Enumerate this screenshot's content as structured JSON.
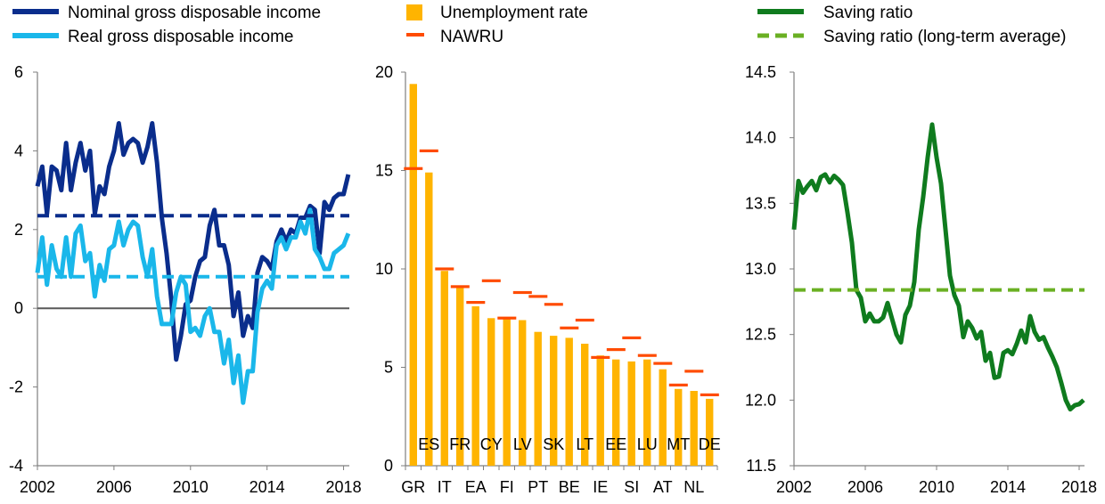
{
  "colors": {
    "nominal": "#0a2d8c",
    "real": "#1ab7ea",
    "unemployment": "#ffb400",
    "nawru": "#ff4b00",
    "saving": "#0f7b1e",
    "saving_avg": "#6ab023",
    "zero_line": "#595959",
    "axis": "#7f7f7f"
  },
  "chart_data": [
    {
      "type": "line",
      "legend": [
        {
          "name": "Nominal gross disposable income",
          "color": "#0a2d8c"
        },
        {
          "name": "Real gross disposable income",
          "color": "#1ab7ea"
        }
      ],
      "ylim": [
        -4,
        6
      ],
      "yticks": [
        "6",
        "4",
        "2",
        "0",
        "-2",
        "-4"
      ],
      "xlim": [
        2002.0,
        2018.3
      ],
      "xticks": [
        "2002",
        "2006",
        "2010",
        "2014",
        "2018"
      ],
      "zero_line": 0,
      "series": [
        {
          "name": "Nominal gross disposable income",
          "style": "solid",
          "x": [
            2002.0,
            2002.25,
            2002.5,
            2002.75,
            2003.0,
            2003.25,
            2003.5,
            2003.75,
            2004.0,
            2004.25,
            2004.5,
            2004.75,
            2005.0,
            2005.25,
            2005.5,
            2005.75,
            2006.0,
            2006.25,
            2006.5,
            2006.75,
            2007.0,
            2007.25,
            2007.5,
            2007.75,
            2008.0,
            2008.25,
            2008.5,
            2008.75,
            2009.0,
            2009.25,
            2009.5,
            2009.75,
            2010.0,
            2010.25,
            2010.5,
            2010.75,
            2011.0,
            2011.25,
            2011.5,
            2011.75,
            2012.0,
            2012.25,
            2012.5,
            2012.75,
            2013.0,
            2013.25,
            2013.5,
            2013.75,
            2014.0,
            2014.25,
            2014.5,
            2014.75,
            2015.0,
            2015.25,
            2015.5,
            2015.75,
            2016.0,
            2016.25,
            2016.5,
            2016.75,
            2017.0,
            2017.25,
            2017.5,
            2017.75,
            2018.0,
            2018.25
          ],
          "values": [
            3.1,
            3.6,
            2.4,
            3.6,
            3.5,
            3.0,
            4.2,
            3.0,
            3.7,
            4.2,
            3.5,
            4.0,
            2.4,
            3.1,
            2.9,
            3.6,
            4.0,
            4.7,
            3.9,
            4.2,
            4.3,
            4.2,
            3.7,
            4.1,
            4.7,
            3.7,
            2.3,
            1.4,
            0.2,
            -1.3,
            -0.7,
            0.1,
            0.2,
            0.8,
            1.2,
            1.3,
            2.1,
            2.5,
            1.6,
            1.6,
            1.1,
            -0.2,
            0.4,
            -0.7,
            -0.2,
            -0.5,
            0.9,
            1.3,
            1.2,
            1.0,
            1.7,
            2.0,
            1.7,
            2.0,
            1.9,
            2.3,
            2.3,
            2.6,
            2.5,
            1.4,
            2.7,
            2.5,
            2.8,
            2.9,
            2.9,
            3.4
          ]
        },
        {
          "name": "Real gross disposable income",
          "style": "solid",
          "x": [
            2002.0,
            2002.25,
            2002.5,
            2002.75,
            2003.0,
            2003.25,
            2003.5,
            2003.75,
            2004.0,
            2004.25,
            2004.5,
            2004.75,
            2005.0,
            2005.25,
            2005.5,
            2005.75,
            2006.0,
            2006.25,
            2006.5,
            2006.75,
            2007.0,
            2007.25,
            2007.5,
            2007.75,
            2008.0,
            2008.25,
            2008.5,
            2008.75,
            2009.0,
            2009.25,
            2009.5,
            2009.75,
            2010.0,
            2010.25,
            2010.5,
            2010.75,
            2011.0,
            2011.25,
            2011.5,
            2011.75,
            2012.0,
            2012.25,
            2012.5,
            2012.75,
            2013.0,
            2013.25,
            2013.5,
            2013.75,
            2014.0,
            2014.25,
            2014.5,
            2014.75,
            2015.0,
            2015.25,
            2015.5,
            2015.75,
            2016.0,
            2016.25,
            2016.5,
            2016.75,
            2017.0,
            2017.25,
            2017.5,
            2017.75,
            2018.0,
            2018.25
          ],
          "values": [
            0.9,
            1.8,
            0.6,
            1.6,
            1.0,
            0.8,
            1.8,
            0.8,
            1.9,
            2.1,
            1.2,
            1.4,
            0.3,
            1.1,
            0.7,
            1.5,
            1.6,
            2.2,
            1.6,
            2.0,
            2.2,
            2.1,
            1.3,
            0.8,
            1.5,
            0.3,
            -0.4,
            -0.4,
            -0.4,
            0.4,
            0.8,
            0.6,
            -0.6,
            -0.5,
            -0.7,
            -0.2,
            0.0,
            -0.6,
            -0.6,
            -1.4,
            -0.8,
            -1.9,
            -1.2,
            -2.4,
            -1.6,
            -1.6,
            -0.1,
            0.5,
            0.7,
            0.5,
            1.6,
            1.8,
            1.5,
            1.8,
            1.8,
            2.2,
            1.9,
            2.5,
            1.5,
            1.3,
            1.0,
            1.0,
            1.4,
            1.5,
            1.6,
            1.9
          ]
        },
        {
          "name": "Nominal gross disposable income (average)",
          "style": "dashed",
          "x": [
            2002.0,
            2018.3
          ],
          "values": [
            2.35,
            2.35
          ]
        },
        {
          "name": "Real gross disposable income (average)",
          "style": "dashed",
          "x": [
            2002.0,
            2018.3
          ],
          "values": [
            0.8,
            0.8
          ]
        }
      ]
    },
    {
      "type": "bar",
      "legend": [
        {
          "name": "Unemployment rate",
          "color": "#ffb400"
        },
        {
          "name": "NAWRU",
          "color": "#ff4b00"
        }
      ],
      "ylim": [
        0,
        20
      ],
      "yticks": [
        "20",
        "15",
        "10",
        "5",
        "0"
      ],
      "categories": [
        "GR",
        "ES",
        "IT",
        "FR",
        "EA",
        "CY",
        "FI",
        "LV",
        "PT",
        "SK",
        "BE",
        "LT",
        "IE",
        "EE",
        "SI",
        "LU",
        "AT",
        "MT",
        "NL",
        "DE"
      ],
      "category_labels_bottom": [
        "GR",
        "IT",
        "EA",
        "FI",
        "PT",
        "BE",
        "IE",
        "SI",
        "AT",
        "NL"
      ],
      "category_labels_inside": [
        "ES",
        "FR",
        "CY",
        "LV",
        "SK",
        "LT",
        "EE",
        "LU",
        "MT",
        "DE"
      ],
      "series": [
        {
          "name": "Unemployment rate",
          "values": [
            19.4,
            14.9,
            9.9,
            9.1,
            8.1,
            7.5,
            7.5,
            7.4,
            6.8,
            6.6,
            6.5,
            6.2,
            5.6,
            5.4,
            5.3,
            5.4,
            4.9,
            3.9,
            3.8,
            3.4
          ]
        },
        {
          "name": "NAWRU",
          "values": [
            15.1,
            16.0,
            10.0,
            9.1,
            8.3,
            9.4,
            7.5,
            8.8,
            8.6,
            8.2,
            7.0,
            7.4,
            5.5,
            5.9,
            6.5,
            5.6,
            5.2,
            4.1,
            4.8,
            3.6
          ]
        }
      ]
    },
    {
      "type": "line",
      "legend": [
        {
          "name": "Saving ratio",
          "color": "#0f7b1e"
        },
        {
          "name": "Saving ratio (long-term average)",
          "color": "#6ab023"
        }
      ],
      "ylim": [
        11.5,
        14.5
      ],
      "yticks": [
        "14.5",
        "14.0",
        "13.5",
        "13.0",
        "12.5",
        "12.0",
        "11.5"
      ],
      "xlim": [
        2002.0,
        2018.3
      ],
      "xticks": [
        "2002",
        "2006",
        "2010",
        "2014",
        "2018"
      ],
      "series": [
        {
          "name": "Saving ratio",
          "style": "solid",
          "x": [
            2002.0,
            2002.25,
            2002.5,
            2002.75,
            2003.0,
            2003.25,
            2003.5,
            2003.75,
            2004.0,
            2004.25,
            2004.5,
            2004.75,
            2005.0,
            2005.25,
            2005.5,
            2005.75,
            2006.0,
            2006.25,
            2006.5,
            2006.75,
            2007.0,
            2007.25,
            2007.5,
            2007.75,
            2008.0,
            2008.25,
            2008.5,
            2008.75,
            2009.0,
            2009.25,
            2009.5,
            2009.75,
            2010.0,
            2010.25,
            2010.5,
            2010.75,
            2011.0,
            2011.25,
            2011.5,
            2011.75,
            2012.0,
            2012.25,
            2012.5,
            2012.75,
            2013.0,
            2013.25,
            2013.5,
            2013.75,
            2014.0,
            2014.25,
            2014.5,
            2014.75,
            2015.0,
            2015.25,
            2015.5,
            2015.75,
            2016.0,
            2016.25,
            2016.5,
            2016.75,
            2017.0,
            2017.25,
            2017.5,
            2017.75,
            2018.0,
            2018.25
          ],
          "values": [
            13.3,
            13.67,
            13.58,
            13.63,
            13.67,
            13.6,
            13.7,
            13.72,
            13.66,
            13.71,
            13.68,
            13.64,
            13.43,
            13.2,
            12.84,
            12.78,
            12.6,
            12.66,
            12.6,
            12.6,
            12.63,
            12.74,
            12.62,
            12.5,
            12.44,
            12.65,
            12.72,
            12.9,
            13.3,
            13.55,
            13.85,
            14.1,
            13.85,
            13.65,
            13.3,
            12.95,
            12.8,
            12.72,
            12.48,
            12.6,
            12.55,
            12.47,
            12.52,
            12.3,
            12.36,
            12.17,
            12.18,
            12.36,
            12.38,
            12.35,
            12.43,
            12.53,
            12.44,
            12.64,
            12.52,
            12.46,
            12.48,
            12.4,
            12.33,
            12.25,
            12.13,
            12.0,
            11.93,
            11.96,
            11.97,
            12.0
          ]
        },
        {
          "name": "Saving ratio (long-term average)",
          "style": "dashed",
          "x": [
            2002.0,
            2018.3
          ],
          "values": [
            12.84,
            12.84
          ]
        }
      ]
    }
  ]
}
